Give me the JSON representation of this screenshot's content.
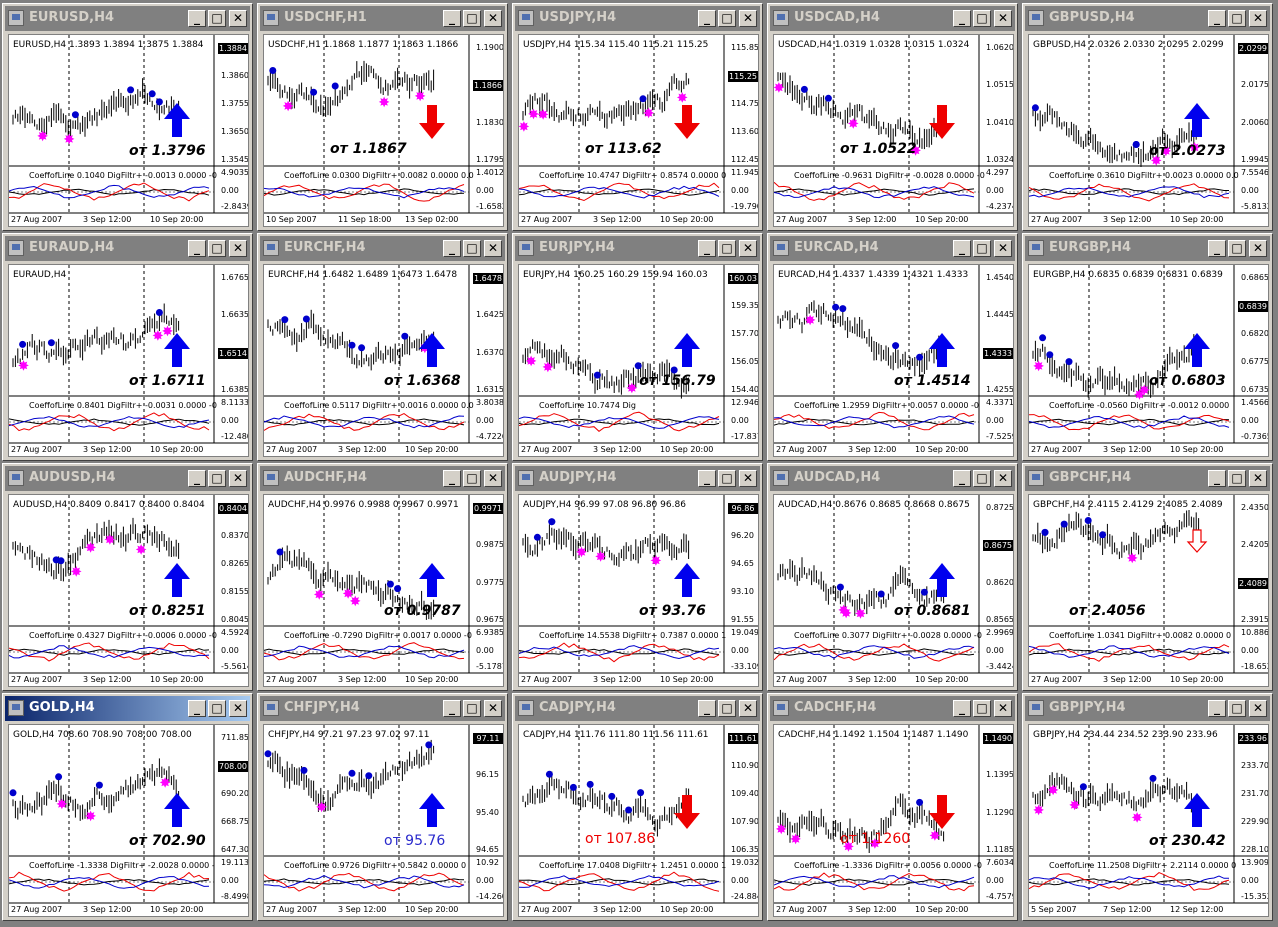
{
  "windows": [
    {
      "title": "EURUSD,H4",
      "head": "EURUSD,H4 1.3893 1.3894 1.3875 1.3884",
      "labels": [
        "1.3884",
        "1.3860",
        "1.3755",
        "1.3650",
        "1.3545"
      ],
      "cur": "1.3884",
      "ind_head": "CoeffofLine 0.1040 DigFiltr+ -0.0013 0.0000 -0",
      "ind_labels": [
        "4.9035",
        "0.00",
        "-2.8439"
      ],
      "dates": [
        "27 Aug 2007",
        "3 Sep 12:00",
        "10 Sep 20:00"
      ],
      "ann": "от 1.3796",
      "arrow": "up"
    },
    {
      "title": "USDCHF,H1",
      "head": "USDCHF,H1 1.1868 1.1877 1.1863 1.1866",
      "labels": [
        "1.1900",
        "1.1866",
        "1.1830",
        "1.1795"
      ],
      "cur": "1.1866",
      "ind_head": "CoeffofLine 0.0300 DigFiltr+ 0.0082 0.0000 0.0",
      "ind_labels": [
        "1.4012",
        "0.00",
        "-1.6582"
      ],
      "dates": [
        "10 Sep 2007",
        "11 Sep 18:00",
        "13 Sep 02:00"
      ],
      "ann": "от 1.1867",
      "arrow": "down"
    },
    {
      "title": "USDJPY,H4",
      "head": "USDJPY,H4 115.34 115.40 115.21 115.25",
      "labels": [
        "115.85",
        "115.25",
        "114.75",
        "113.60",
        "112.45"
      ],
      "cur": "115.25",
      "ind_head": "CoeffofLine 10.4747 DigFiltr+ 0.8574 0.0000 0",
      "ind_labels": [
        "11.9453",
        "0.00",
        "-19.7903"
      ],
      "dates": [
        "27 Aug 2007",
        "3 Sep 12:00",
        "10 Sep 20:00"
      ],
      "ann": "от 113.62",
      "arrow": "down"
    },
    {
      "title": "USDCAD,H4",
      "head": "USDCAD,H4 1.0319 1.0328 1.0315 1.0324",
      "labels": [
        "1.0620",
        "1.0515",
        "1.0410",
        "1.0324"
      ],
      "cur": "1.0324",
      "ind_head": "CoeffofLine -0.9631 DigFiltr+ -0.0028 0.0000 -0",
      "ind_labels": [
        "4.297",
        "0.00",
        "-4.2374"
      ],
      "dates": [
        "27 Aug 2007",
        "3 Sep 12:00",
        "10 Sep 20:00"
      ],
      "ann": "от 1.0522",
      "arrow": "down"
    },
    {
      "title": "GBPUSD,H4",
      "head": "GBPUSD,H4 2.0326 2.0330 2.0295 2.0299",
      "labels": [
        "2.0299",
        "2.0175",
        "2.0060",
        "1.9945"
      ],
      "cur": "2.0299",
      "ind_head": "CoeffofLine 0.3610 DigFiltr+ 0.0023 0.0000 0.0",
      "ind_labels": [
        "7.5546",
        "0.00",
        "-5.8132"
      ],
      "dates": [
        "27 Aug 2007",
        "3 Sep 12:00",
        "10 Sep 20:00"
      ],
      "ann": "от 2.0273",
      "arrow": "up"
    },
    {
      "title": "EURAUD,H4",
      "head": "EURAUD,H4",
      "labels": [
        "1.6765",
        "1.6635",
        "1.6514",
        "1.6385"
      ],
      "cur": "1.6514",
      "ind_head": "CoeffofLine 0.8401 DigFiltr+ -0.0031 0.0000 -0",
      "ind_labels": [
        "8.1133",
        "0.00",
        "-12.4807"
      ],
      "dates": [
        "27 Aug 2007",
        "3 Sep 12:00",
        "10 Sep 20:00"
      ],
      "ann": "от 1.6711",
      "arrow": "up"
    },
    {
      "title": "EURCHF,H4",
      "head": "EURCHF,H4 1.6482 1.6489 1.6473 1.6478",
      "labels": [
        "1.6478",
        "1.6425",
        "1.6370",
        "1.6315"
      ],
      "cur": "1.6478",
      "ind_head": "CoeffofLine 0.5117 DigFiltr+ 0.0016 0.0000 0.0",
      "ind_labels": [
        "3.8038",
        "0.00",
        "-4.7226"
      ],
      "dates": [
        "27 Aug 2007",
        "3 Sep 12:00",
        "10 Sep 20:00"
      ],
      "ann": "от 1.6368",
      "arrow": "up"
    },
    {
      "title": "EURJPY,H4",
      "head": "EURJPY,H4 160.25 160.29 159.94 160.03",
      "labels": [
        "160.03",
        "159.35",
        "157.70",
        "156.05",
        "154.40"
      ],
      "cur": "160.03",
      "ind_head": "CoeffofLine 10.7474 Dig",
      "ind_labels": [
        "12.9464",
        "0.00",
        "-17.8376"
      ],
      "dates": [
        "27 Aug 2007",
        "3 Sep 12:00",
        "10 Sep 20:00"
      ],
      "ann": "от 156.79",
      "arrow": "up"
    },
    {
      "title": "EURCAD,H4",
      "head": "EURCAD,H4 1.4337 1.4339 1.4321 1.4333",
      "labels": [
        "1.4540",
        "1.4445",
        "1.4333",
        "1.4255"
      ],
      "cur": "1.4333",
      "ind_head": "CoeffofLine 1.2959 DigFiltr+ 0.0057 0.0000 -0",
      "ind_labels": [
        "4.3371",
        "0.00",
        "-7.5259"
      ],
      "dates": [
        "27 Aug 2007",
        "3 Sep 12:00",
        "10 Sep 20:00"
      ],
      "ann": "от 1.4514",
      "arrow": "up"
    },
    {
      "title": "EURGBP,H4",
      "head": "EURGBP,H4 0.6835 0.6839 0.6831 0.6839",
      "labels": [
        "0.6865",
        "0.6839",
        "0.6820",
        "0.6775",
        "0.6735"
      ],
      "cur": "0.6839",
      "ind_head": "CoeffofLine -0.0560 DigFiltr+ -0.0012 0.0000",
      "ind_labels": [
        "1.4566",
        "0.00",
        "-0.7365"
      ],
      "dates": [
        "27 Aug 2007",
        "3 Sep 12:00",
        "10 Sep 20:00"
      ],
      "ann": "от 0.6803",
      "arrow": "up"
    },
    {
      "title": "AUDUSD,H4",
      "head": "AUDUSD,H4 0.8409 0.8417 0.8400 0.8404",
      "labels": [
        "0.8404",
        "0.8370",
        "0.8265",
        "0.8155",
        "0.8045"
      ],
      "cur": "0.8404",
      "ind_head": "CoeffofLine 0.4327 DigFiltr+ -0.0006 0.0000 -0",
      "ind_labels": [
        "4.5924",
        "0.00",
        "-5.5614"
      ],
      "dates": [
        "27 Aug 2007",
        "3 Sep 12:00",
        "10 Sep 20:00"
      ],
      "ann": "от 0.8251",
      "arrow": "up"
    },
    {
      "title": "AUDCHF,H4",
      "head": "AUDCHF,H4 0.9976 0.9988 0.9967 0.9971",
      "labels": [
        "0.9971",
        "0.9875",
        "0.9775",
        "0.9675"
      ],
      "cur": "0.9971",
      "ind_head": "CoeffofLine -0.7290 DigFiltr+ 0.0017 0.0000 -0",
      "ind_labels": [
        "6.9385",
        "0.00",
        "-5.1787"
      ],
      "dates": [
        "27 Aug 2007",
        "3 Sep 12:00",
        "10 Sep 20:00"
      ],
      "ann": "от 0.9787",
      "arrow": "up"
    },
    {
      "title": "AUDJPY,H4",
      "head": "AUDJPY,H4 96.99 97.08 96.80 96.86",
      "labels": [
        "96.86",
        "96.20",
        "94.65",
        "93.10",
        "91.55"
      ],
      "cur": "96.86",
      "ind_head": "CoeffofLine 14.5538 DigFiltr+ 0.7387 0.0000 1",
      "ind_labels": [
        "19.0498",
        "0.00",
        "-33.1094"
      ],
      "dates": [
        "27 Aug 2007",
        "3 Sep 12:00",
        "10 Sep 20:00"
      ],
      "ann": "от 93.76",
      "arrow": "up"
    },
    {
      "title": "AUDCAD,H4",
      "head": "AUDCAD,H4 0.8676 0.8685 0.8668 0.8675",
      "labels": [
        "0.8725",
        "0.8675",
        "0.8620",
        "0.8565"
      ],
      "cur": "0.8675",
      "ind_head": "CoeffofLine 0.3077 DigFiltr+ -0.0028 0.0000 -0",
      "ind_labels": [
        "2.9969",
        "0.00",
        "-3.4424"
      ],
      "dates": [
        "27 Aug 2007",
        "3 Sep 12:00",
        "10 Sep 20:00"
      ],
      "ann": "от 0.8681",
      "arrow": "up"
    },
    {
      "title": "GBPCHF,H4",
      "head": "GBPCHF,H4 2.4115 2.4129 2.4085 2.4089",
      "labels": [
        "2.4350",
        "2.4205",
        "2.4089",
        "2.3915"
      ],
      "cur": "2.4089",
      "ind_head": "CoeffofLine 1.0341 DigFiltr+ 0.0082 0.0000 0",
      "ind_labels": [
        "10.8868",
        "0.00",
        "-18.6523"
      ],
      "dates": [
        "27 Aug 2007",
        "3 Sep 12:00",
        "10 Sep 20:00"
      ],
      "ann": "от  2.4056",
      "arrow": "down-outline"
    },
    {
      "title": "GOLD,H4",
      "head": "GOLD,H4 708.60 708.90 708.00 708.00",
      "labels": [
        "711.85",
        "708.00",
        "690.20",
        "668.75",
        "647.30"
      ],
      "cur": "708.00",
      "ind_head": "CoeffofLine -1.3338 DigFiltr+ -2.0028 0.0000 -",
      "ind_labels": [
        "19.1135",
        "0.00",
        "-8.4998"
      ],
      "dates": [
        "27 Aug 2007",
        "3 Sep 12:00",
        "10 Sep 20:00"
      ],
      "ann": "от 702.90",
      "arrow": "up",
      "active": true
    },
    {
      "title": "CHFJPY,H4",
      "head": "CHFJPY,H4 97.21 97.23 97.02 97.11",
      "labels": [
        "97.11",
        "96.15",
        "95.40",
        "94.65"
      ],
      "cur": "97.11",
      "ind_head": "CoeffofLine 0.9726 DigFiltr+ 0.5842 0.0000 0",
      "ind_labels": [
        "10.92",
        "0.00",
        "-14.2606"
      ],
      "dates": [
        "27 Aug 2007",
        "3 Sep 12:00",
        "10 Sep 20:00"
      ],
      "ann": "от 95.76",
      "ann_style": "blue",
      "arrow": "up"
    },
    {
      "title": "CADJPY,H4",
      "head": "CADJPY,H4 111.76 111.80 111.56 111.61",
      "labels": [
        "111.61",
        "110.90",
        "109.40",
        "107.90",
        "106.35"
      ],
      "cur": "111.61",
      "ind_head": "CoeffofLine 17.0408 DigFiltr+ 1.2451 0.0000 1",
      "ind_labels": [
        "19.0327",
        "0.00",
        "-24.8844"
      ],
      "dates": [
        "27 Aug 2007",
        "3 Sep 12:00",
        "10 Sep 20:00"
      ],
      "ann": "от 107.86",
      "ann_style": "red",
      "arrow": "down"
    },
    {
      "title": "CADCHF,H4",
      "head": "CADCHF,H4 1.1492 1.1504 1.1487 1.1490",
      "labels": [
        "1.1490",
        "1.1395",
        "1.1290",
        "1.1185"
      ],
      "cur": "1.1490",
      "ind_head": "CoeffofLine -1.3336 DigFiltr+ 0.0056 0.0000 -0",
      "ind_labels": [
        "7.6034",
        "0.00",
        "-4.7579"
      ],
      "dates": [
        "27 Aug 2007",
        "3 Sep 12:00",
        "10 Sep 20:00"
      ],
      "ann": "от 1.1260",
      "ann_style": "red",
      "arrow": "down"
    },
    {
      "title": "GBPJPY,H4",
      "head": "GBPJPY,H4 234.44 234.52 233.90 233.96",
      "labels": [
        "233.96",
        "233.70",
        "231.70",
        "229.90",
        "228.10"
      ],
      "cur": "233.96",
      "ind_head": "CoeffofLine 11.2508 DigFiltr+ 2.2114 0.0000 0",
      "ind_labels": [
        "13.9096",
        "0.00",
        "-15.3525"
      ],
      "dates": [
        "5 Sep 2007",
        "7 Sep 12:00",
        "12 Sep 12:00"
      ],
      "ann": "от 230.42",
      "arrow": "up"
    }
  ],
  "colors": {
    "up_arrow": "#0000ee",
    "down_arrow": "#ee0000",
    "pivot_magenta": "#ff00ff",
    "pivot_blue": "#0000cc",
    "series_red": "#ee0000",
    "series_blue": "#0000cc"
  }
}
